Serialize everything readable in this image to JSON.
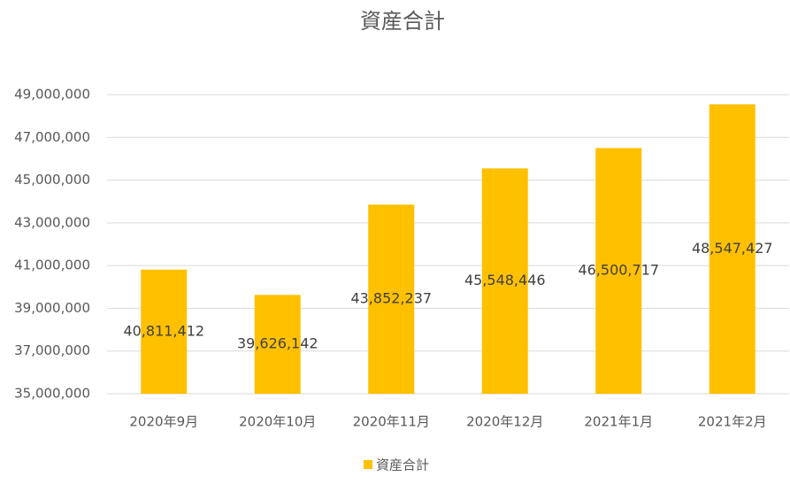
{
  "chart_data": {
    "type": "bar",
    "title": "資産合計",
    "categories": [
      "2020年9月",
      "2020年10月",
      "2020年11月",
      "2020年12月",
      "2021年1月",
      "2021年2月"
    ],
    "series": [
      {
        "name": "資産合計",
        "color": "#ffc000",
        "values": [
          40811412,
          39626142,
          43852237,
          45548446,
          46500717,
          48547427
        ],
        "value_labels": [
          "40,811,412",
          "39,626,142",
          "43,852,237",
          "45,548,446",
          "46,500,717",
          "48,547,427"
        ]
      }
    ],
    "ylim": [
      35000000,
      49000000
    ],
    "yticks": [
      {
        "value": 35000000,
        "label": "35,000,000"
      },
      {
        "value": 37000000,
        "label": "37,000,000"
      },
      {
        "value": 39000000,
        "label": "39,000,000"
      },
      {
        "value": 41000000,
        "label": "41,000,000"
      },
      {
        "value": 43000000,
        "label": "43,000,000"
      },
      {
        "value": 45000000,
        "label": "45,000,000"
      },
      {
        "value": 47000000,
        "label": "47,000,000"
      },
      {
        "value": 49000000,
        "label": "49,000,000"
      }
    ],
    "grid": true,
    "legend": "bottom"
  }
}
